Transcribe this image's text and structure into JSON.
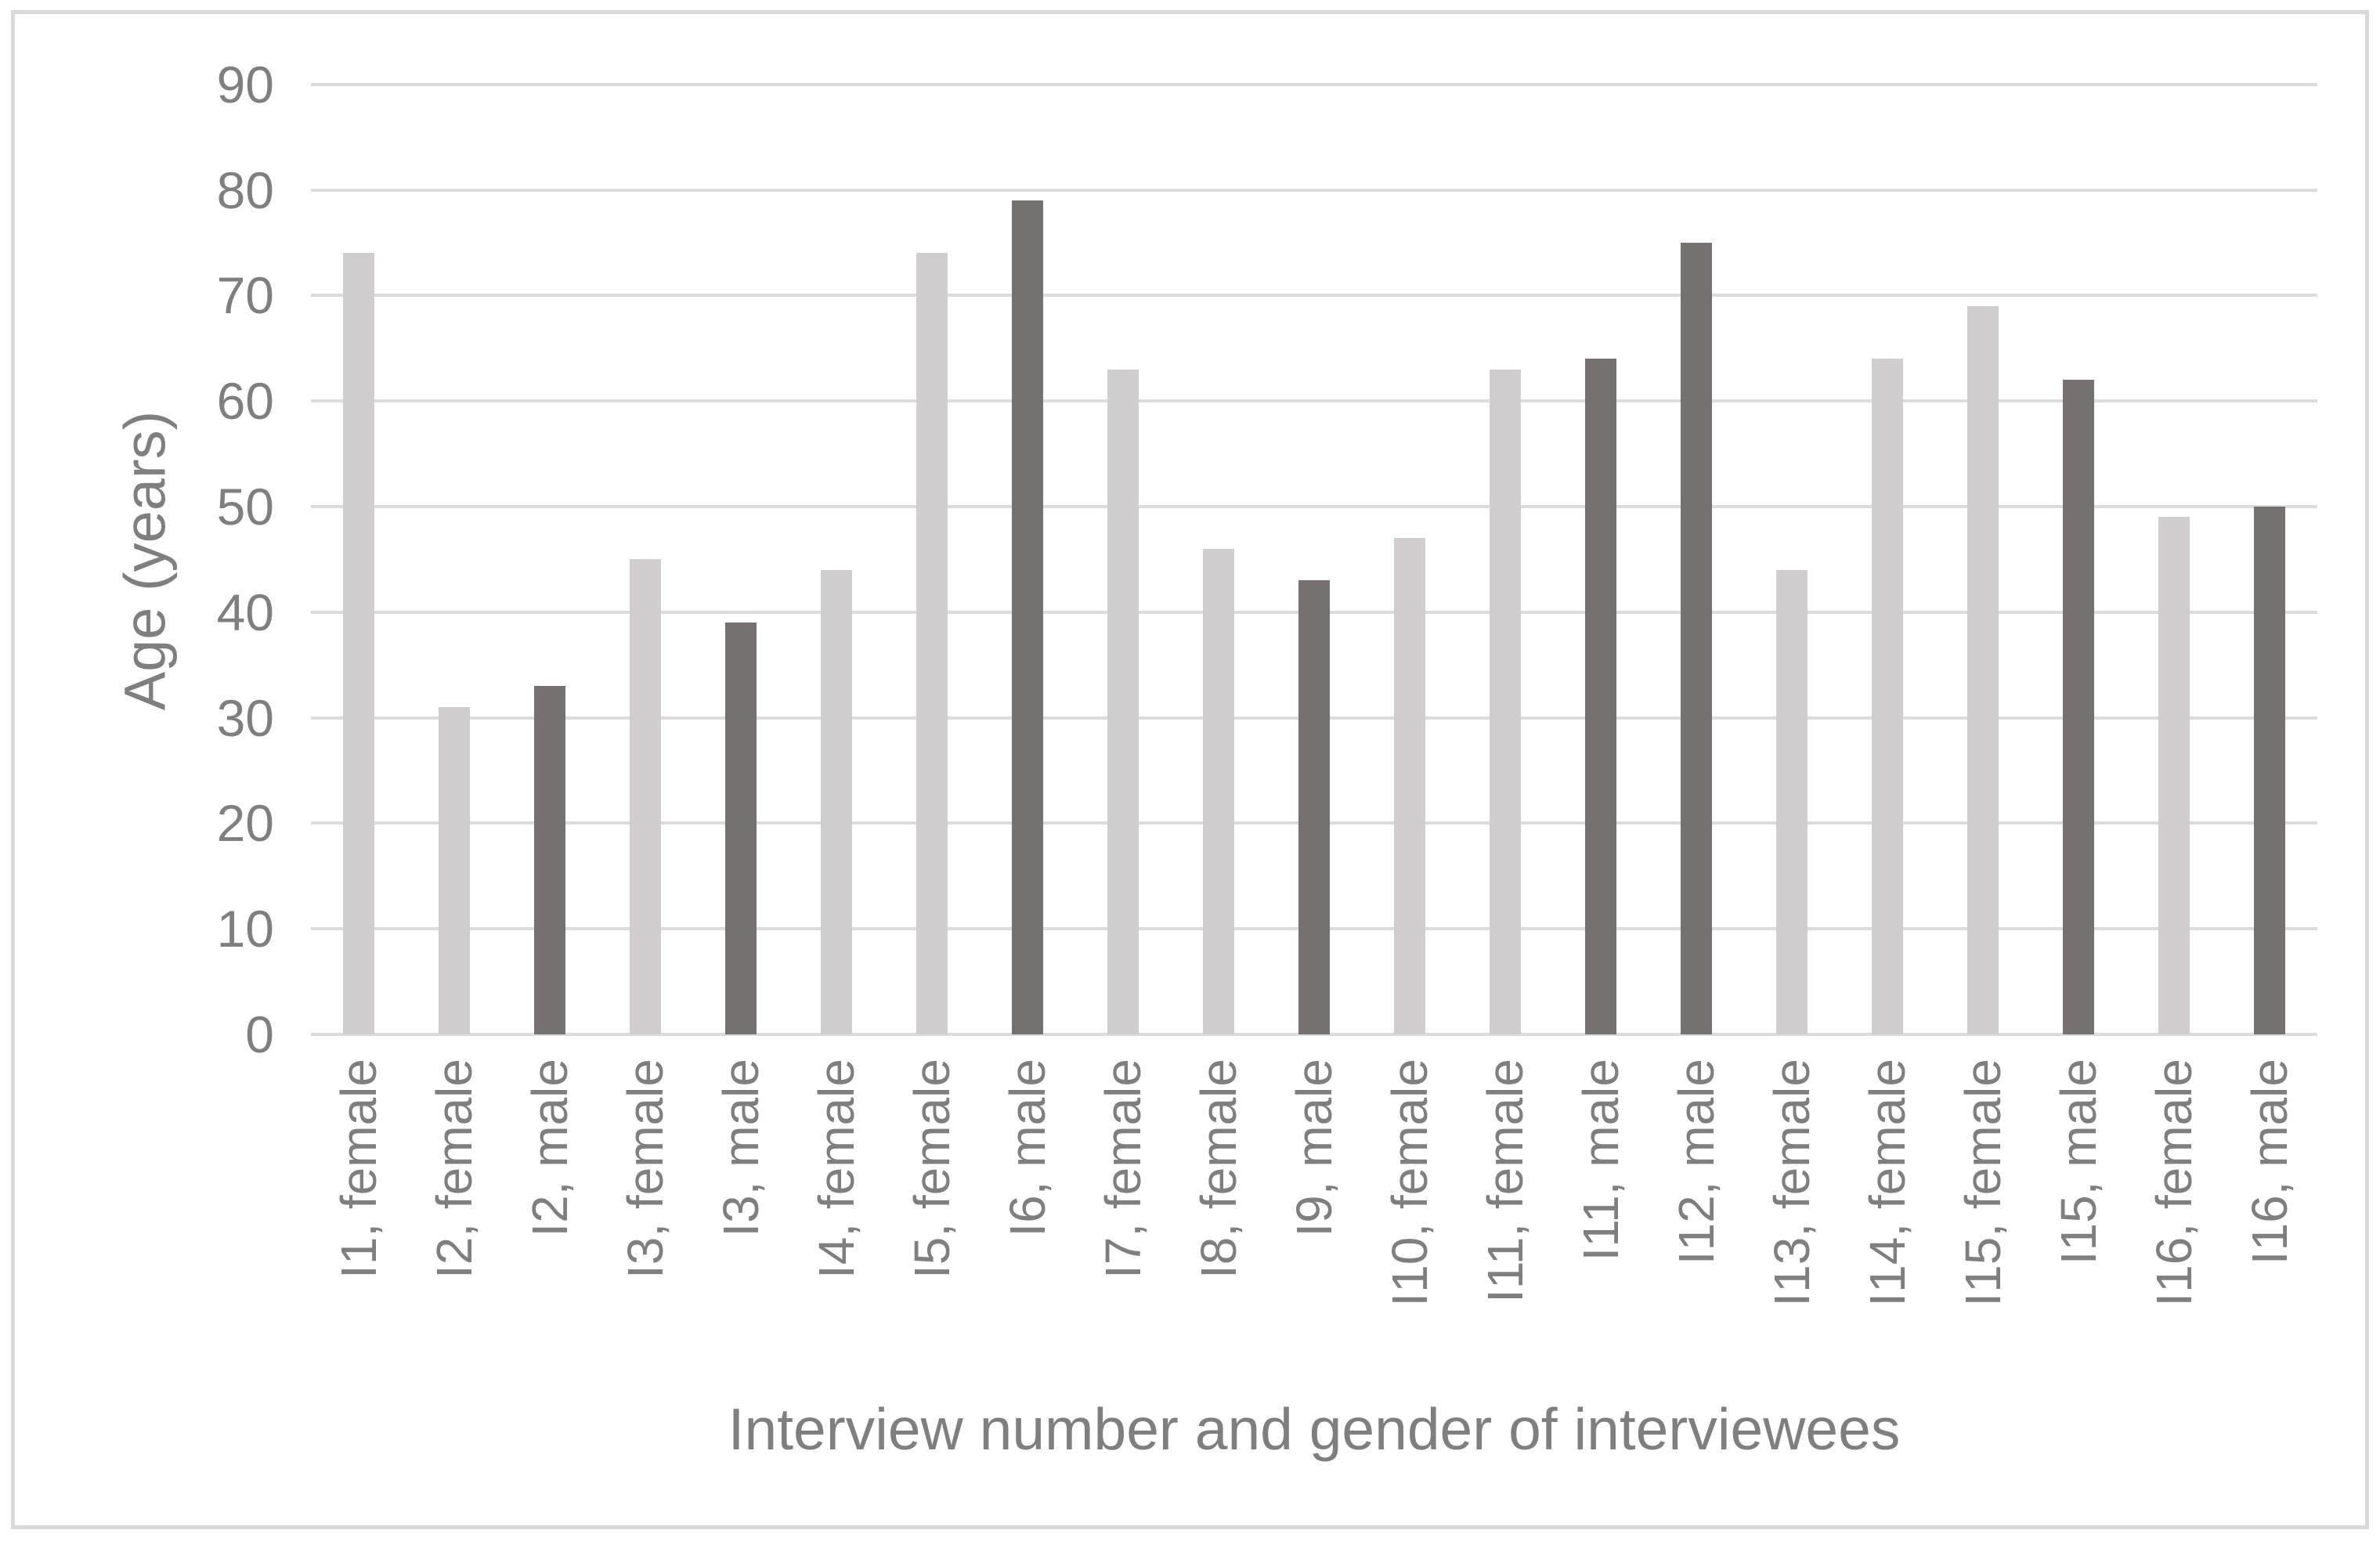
{
  "chart_data": {
    "type": "bar",
    "title": "",
    "xlabel": "Interview number and gender of interviewees",
    "ylabel": "Age (years)",
    "ylim": [
      0,
      90
    ],
    "y_ticks": [
      0,
      10,
      20,
      30,
      40,
      50,
      60,
      70,
      80,
      90
    ],
    "grid": true,
    "legend": "none",
    "categories": [
      "I1, female",
      "I2, female",
      "I2, male",
      "I3, female",
      "I3, male",
      "I4, female",
      "I5, female",
      "I6, male",
      "I7, female",
      "I8, female",
      "I9, male",
      "I10, female",
      "I11, female",
      "I11, male",
      "I12, male",
      "I13, female",
      "I14, female",
      "I15, female",
      "I15, male",
      "I16, female",
      "I16, male"
    ],
    "values": [
      74,
      31,
      33,
      45,
      39,
      44,
      74,
      79,
      63,
      46,
      43,
      47,
      63,
      64,
      75,
      44,
      64,
      69,
      62,
      49,
      50
    ],
    "genders": [
      "female",
      "female",
      "male",
      "female",
      "male",
      "female",
      "female",
      "male",
      "female",
      "female",
      "male",
      "female",
      "female",
      "male",
      "male",
      "female",
      "female",
      "female",
      "male",
      "female",
      "male"
    ]
  },
  "colors": {
    "female_bar": "#d0cece",
    "male_bar": "#767171",
    "gridline": "#dcdcdc",
    "axis_line": "#dcdcdc",
    "text": "#7f7f7f",
    "frame_border": "#d9d9d9",
    "background": "#ffffff"
  }
}
